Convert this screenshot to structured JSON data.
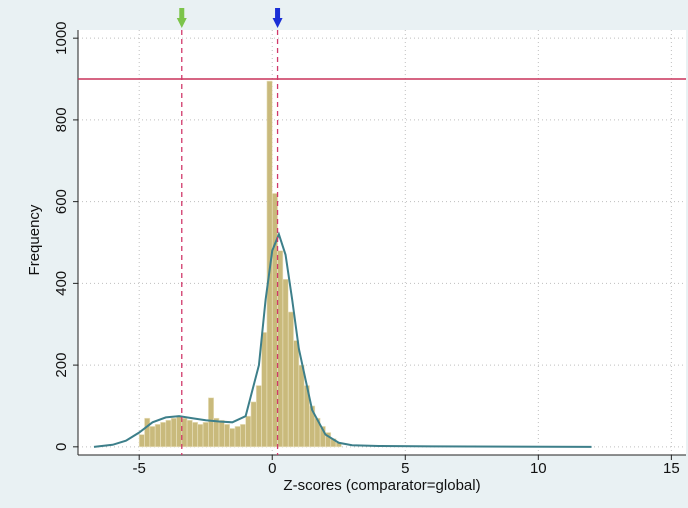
{
  "chart_data": {
    "type": "histogram",
    "xlabel": "Z-scores (comparator=global)",
    "ylabel": "Frequency",
    "bins": [
      -5.0,
      -4.8,
      -4.6,
      -4.4,
      -4.2,
      -4.0,
      -3.8,
      -3.6,
      -3.4,
      -3.2,
      -3.0,
      -2.8,
      -2.6,
      -2.4,
      -2.2,
      -2.0,
      -1.8,
      -1.6,
      -1.4,
      -1.2,
      -1.0,
      -0.8,
      -0.6,
      -0.4,
      -0.2,
      0.0,
      0.2,
      0.4,
      0.6,
      0.8,
      1.0,
      1.2,
      1.4,
      1.6,
      1.8,
      2.0,
      2.2,
      2.4,
      2.6
    ],
    "values": [
      30,
      70,
      50,
      55,
      60,
      65,
      70,
      75,
      70,
      65,
      60,
      55,
      60,
      120,
      70,
      65,
      55,
      45,
      50,
      55,
      75,
      110,
      150,
      280,
      895,
      620,
      480,
      410,
      330,
      260,
      200,
      150,
      100,
      70,
      50,
      35,
      20,
      10
    ],
    "color": "#c9ba7c",
    "density": {
      "color": "#3d7f8a",
      "x": [
        -6.7,
        -6,
        -5.5,
        -5,
        -4.5,
        -4,
        -3.5,
        -3,
        -2.5,
        -2,
        -1.5,
        -1,
        -0.5,
        -0.25,
        0,
        0.25,
        0.5,
        0.75,
        1,
        1.5,
        2,
        2.5,
        3,
        4,
        6,
        12
      ],
      "values": [
        0,
        5,
        15,
        35,
        60,
        72,
        75,
        70,
        65,
        62,
        60,
        75,
        200,
        360,
        480,
        520,
        470,
        360,
        240,
        90,
        30,
        10,
        4,
        2,
        1,
        0
      ]
    },
    "hline": {
      "value": 900,
      "color": "#c8325a"
    },
    "vlines": [
      {
        "value": -3.4,
        "color": "#d0396a",
        "arrow_color": "#7cc44a"
      },
      {
        "value": 0.2,
        "color": "#d0396a",
        "arrow_color": "#1a2fd6"
      }
    ],
    "xlim": [
      -7.3,
      15.55
    ],
    "ylim": [
      -20,
      1020
    ],
    "xticks": [
      -5,
      0,
      5,
      10,
      15
    ],
    "yticks": [
      0,
      200,
      400,
      600,
      800,
      1000
    ],
    "grid": true
  }
}
